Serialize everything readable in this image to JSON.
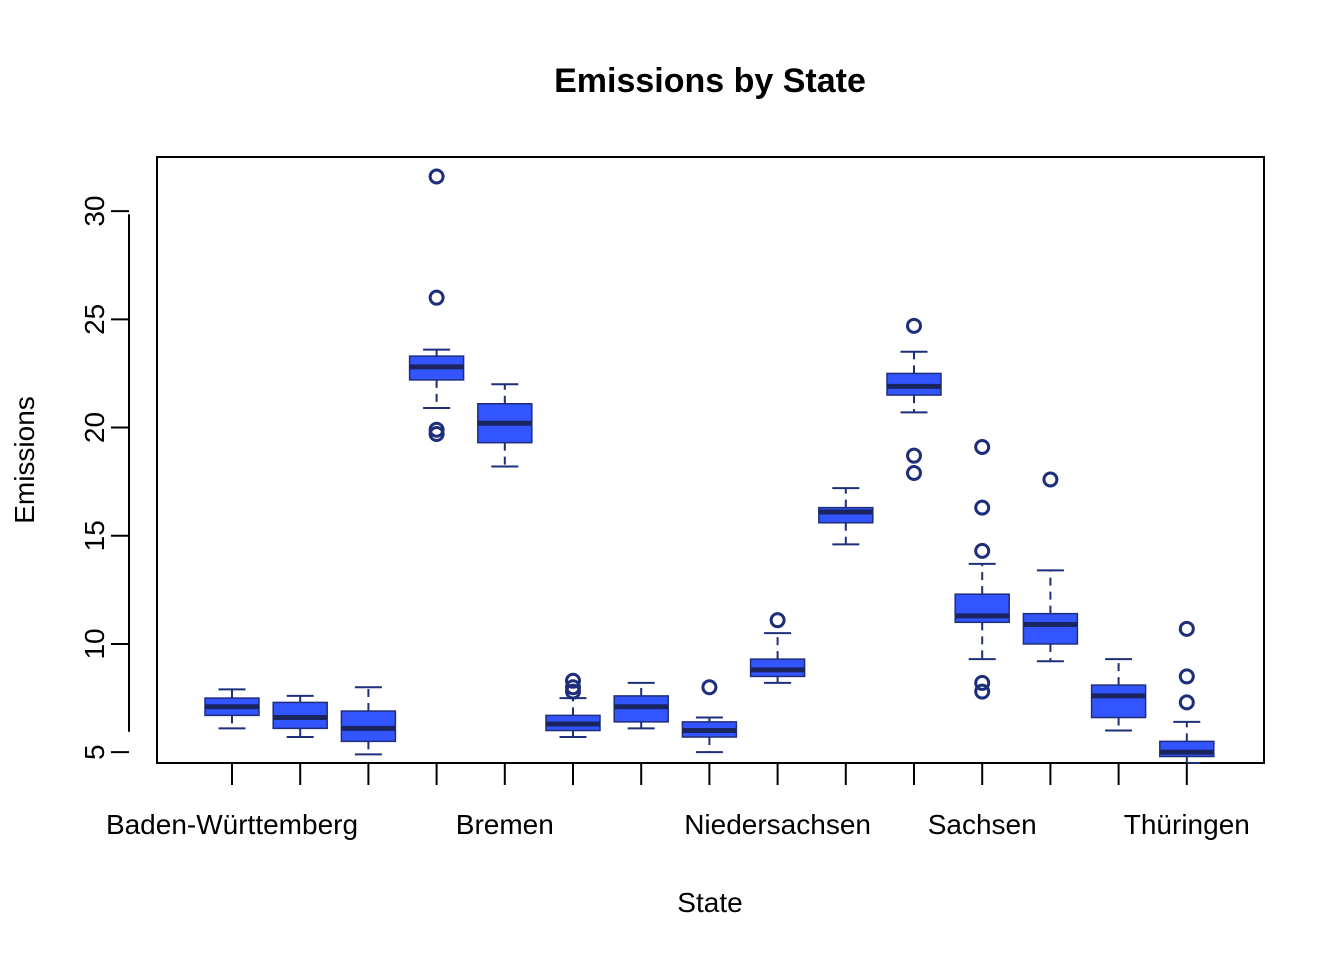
{
  "chart_data": {
    "type": "boxplot",
    "title": "Emissions by State",
    "xlabel": "State",
    "ylabel": "Emissions",
    "ylim": [
      4.5,
      32.5
    ],
    "yticks": [
      5,
      10,
      15,
      20,
      25,
      30
    ],
    "x_tick_labels": [
      {
        "index": 0,
        "text": "Baden-Württemberg"
      },
      {
        "index": 4,
        "text": "Bremen"
      },
      {
        "index": 8,
        "text": "Niedersachsen"
      },
      {
        "index": 11,
        "text": "Sachsen"
      },
      {
        "index": 14,
        "text": "Thüringen"
      }
    ],
    "colors": {
      "box_fill": "#3355ff",
      "box_stroke": "#1f2e7a",
      "outlier": "#1f2e7a"
    },
    "boxes": [
      {
        "q1": 6.7,
        "median": 7.1,
        "q3": 7.5,
        "whisker_low": 6.1,
        "whisker_high": 7.9,
        "outliers": []
      },
      {
        "q1": 6.1,
        "median": 6.6,
        "q3": 7.3,
        "whisker_low": 5.7,
        "whisker_high": 7.6,
        "outliers": []
      },
      {
        "q1": 5.5,
        "median": 6.1,
        "q3": 6.9,
        "whisker_low": 4.9,
        "whisker_high": 8.0,
        "outliers": []
      },
      {
        "q1": 22.2,
        "median": 22.8,
        "q3": 23.3,
        "whisker_low": 20.9,
        "whisker_high": 23.6,
        "outliers": [
          31.6,
          26.0,
          19.9,
          19.7
        ]
      },
      {
        "q1": 19.3,
        "median": 20.2,
        "q3": 21.1,
        "whisker_low": 18.2,
        "whisker_high": 22.0,
        "outliers": []
      },
      {
        "q1": 6.0,
        "median": 6.3,
        "q3": 6.7,
        "whisker_low": 5.7,
        "whisker_high": 7.5,
        "outliers": [
          8.3,
          8.0,
          7.8
        ]
      },
      {
        "q1": 6.4,
        "median": 7.1,
        "q3": 7.6,
        "whisker_low": 6.1,
        "whisker_high": 8.2,
        "outliers": []
      },
      {
        "q1": 5.7,
        "median": 6.0,
        "q3": 6.4,
        "whisker_low": 5.0,
        "whisker_high": 6.6,
        "outliers": [
          8.0
        ]
      },
      {
        "q1": 8.5,
        "median": 8.8,
        "q3": 9.3,
        "whisker_low": 8.2,
        "whisker_high": 10.5,
        "outliers": [
          11.1
        ]
      },
      {
        "q1": 15.6,
        "median": 16.1,
        "q3": 16.3,
        "whisker_low": 14.6,
        "whisker_high": 17.2,
        "outliers": []
      },
      {
        "q1": 21.5,
        "median": 21.9,
        "q3": 22.5,
        "whisker_low": 20.7,
        "whisker_high": 23.5,
        "outliers": [
          24.7,
          18.7,
          17.9
        ]
      },
      {
        "q1": 11.0,
        "median": 11.3,
        "q3": 12.3,
        "whisker_low": 9.3,
        "whisker_high": 13.7,
        "outliers": [
          19.1,
          16.3,
          14.3,
          8.2,
          7.8
        ]
      },
      {
        "q1": 10.0,
        "median": 10.9,
        "q3": 11.4,
        "whisker_low": 9.2,
        "whisker_high": 13.4,
        "outliers": [
          17.6
        ]
      },
      {
        "q1": 6.6,
        "median": 7.6,
        "q3": 8.1,
        "whisker_low": 6.0,
        "whisker_high": 9.3,
        "outliers": []
      },
      {
        "q1": 4.8,
        "median": 5.0,
        "q3": 5.5,
        "whisker_low": 4.5,
        "whisker_high": 6.4,
        "outliers": [
          10.7,
          8.5,
          7.3
        ]
      }
    ]
  }
}
